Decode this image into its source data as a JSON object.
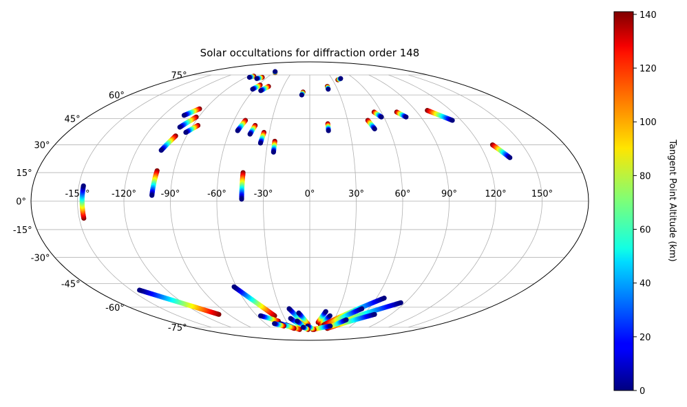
{
  "chart_data": {
    "type": "scatter",
    "projection": "mollweide",
    "title": "Solar occultations for diffraction order 148",
    "grid": true,
    "lon_ticks": [
      "-150°",
      "-120°",
      "-90°",
      "-60°",
      "-30°",
      "0°",
      "30°",
      "60°",
      "90°",
      "120°",
      "150°"
    ],
    "lat_ticks": [
      "75°",
      "60°",
      "45°",
      "30°",
      "15°",
      "0°",
      "-15°",
      "-30°",
      "-45°",
      "-60°",
      "-75°"
    ],
    "colorbar": {
      "label": "Tangent Point Altitude (km)",
      "range": [
        0,
        141
      ],
      "colormap": "jet",
      "ticks": [
        "0",
        "20",
        "40",
        "60",
        "80",
        "100",
        "120",
        "140"
      ]
    },
    "occultations": [
      {
        "lon": [
          -147,
          -147
        ],
        "lat": [
          8,
          -9
        ]
      },
      {
        "lon": [
          -102,
          -101
        ],
        "lat": [
          3,
          16
        ]
      },
      {
        "lon": [
          -44,
          -44
        ],
        "lat": [
          1,
          15
        ]
      },
      {
        "lon": [
          -103,
          -98
        ],
        "lat": [
          27,
          35
        ]
      },
      {
        "lon": [
          -92,
          -86
        ],
        "lat": [
          37,
          41
        ]
      },
      {
        "lon": [
          -99,
          -92
        ],
        "lat": [
          40,
          46
        ]
      },
      {
        "lon": [
          -103,
          -95
        ],
        "lat": [
          47,
          51
        ]
      },
      {
        "lon": [
          -54,
          -51
        ],
        "lat": [
          38,
          44
        ]
      },
      {
        "lon": [
          -44,
          -42
        ],
        "lat": [
          36,
          41
        ]
      },
      {
        "lon": [
          -35,
          -34
        ],
        "lat": [
          31,
          37
        ]
      },
      {
        "lon": [
          -25,
          -25
        ],
        "lat": [
          26,
          32
        ]
      },
      {
        "lon": [
          -85,
          -82
        ],
        "lat": [
          73,
          74
        ]
      },
      {
        "lon": [
          -62,
          -58
        ],
        "lat": [
          64,
          67
        ]
      },
      {
        "lon": [
          -72,
          -67
        ],
        "lat": [
          72,
          73
        ]
      },
      {
        "lon": [
          -52,
          -47
        ],
        "lat": [
          63,
          66
        ]
      },
      {
        "lon": [
          -61,
          -58
        ],
        "lat": [
          78,
          77
        ]
      },
      {
        "lon": [
          -8,
          -7
        ],
        "lat": [
          60,
          62
        ]
      },
      {
        "lon": [
          14,
          14
        ],
        "lat": [
          38,
          42
        ]
      },
      {
        "lon": [
          20,
          20
        ],
        "lat": [
          64,
          66
        ]
      },
      {
        "lon": [
          49,
          46
        ],
        "lat": [
          39,
          44
        ]
      },
      {
        "lon": [
          58,
          54
        ],
        "lat": [
          46,
          49
        ]
      },
      {
        "lon": [
          78,
          73
        ],
        "lat": [
          46,
          49
        ]
      },
      {
        "lon": [
          113,
          100
        ],
        "lat": [
          44,
          50
        ]
      },
      {
        "lon": [
          136,
          129
        ],
        "lat": [
          23,
          30
        ]
      },
      {
        "lon": [
          42,
          37
        ],
        "lat": [
          72,
          71
        ]
      },
      {
        "lon": [
          -143,
          -101
        ],
        "lat": [
          -49,
          -65
        ]
      },
      {
        "lon": [
          -62,
          -40
        ],
        "lat": [
          -47,
          -66
        ]
      },
      {
        "lon": [
          -56,
          -40
        ],
        "lat": [
          -66,
          -70
        ]
      },
      {
        "lon": [
          -21,
          -8
        ],
        "lat": [
          -61,
          -73
        ]
      },
      {
        "lon": [
          -12,
          -2
        ],
        "lat": [
          -64,
          -73
        ]
      },
      {
        "lon": [
          -23,
          -11
        ],
        "lat": [
          -68,
          -75
        ]
      },
      {
        "lon": [
          -16,
          -6
        ],
        "lat": [
          -70,
          -76
        ]
      },
      {
        "lon": [
          -34,
          -17
        ],
        "lat": [
          -73,
          -77
        ]
      },
      {
        "lon": [
          -40,
          -25
        ],
        "lat": [
          -72,
          -76
        ]
      },
      {
        "lon": [
          -48,
          -38
        ],
        "lat": [
          -72,
          -74
        ]
      },
      {
        "lon": [
          17,
          11
        ],
        "lat": [
          -63,
          -71
        ]
      },
      {
        "lon": [
          23,
          15
        ],
        "lat": [
          -66,
          -73
        ]
      },
      {
        "lon": [
          67,
          20
        ],
        "lat": [
          -54,
          -73
        ]
      },
      {
        "lon": [
          86,
          24
        ],
        "lat": [
          -57,
          -75
        ]
      },
      {
        "lon": [
          53,
          22
        ],
        "lat": [
          -61,
          -74
        ]
      },
      {
        "lon": [
          72,
          28
        ],
        "lat": [
          -65,
          -76
        ]
      },
      {
        "lon": [
          45,
          28
        ],
        "lat": [
          -69,
          -76
        ]
      },
      {
        "lon": [
          30,
          5
        ],
        "lat": [
          -74,
          -77
        ]
      },
      {
        "lon": [
          -3,
          7
        ],
        "lat": [
          -74,
          -77
        ]
      },
      {
        "lon": [
          -10,
          -3
        ],
        "lat": [
          -75,
          -77
        ]
      }
    ]
  }
}
